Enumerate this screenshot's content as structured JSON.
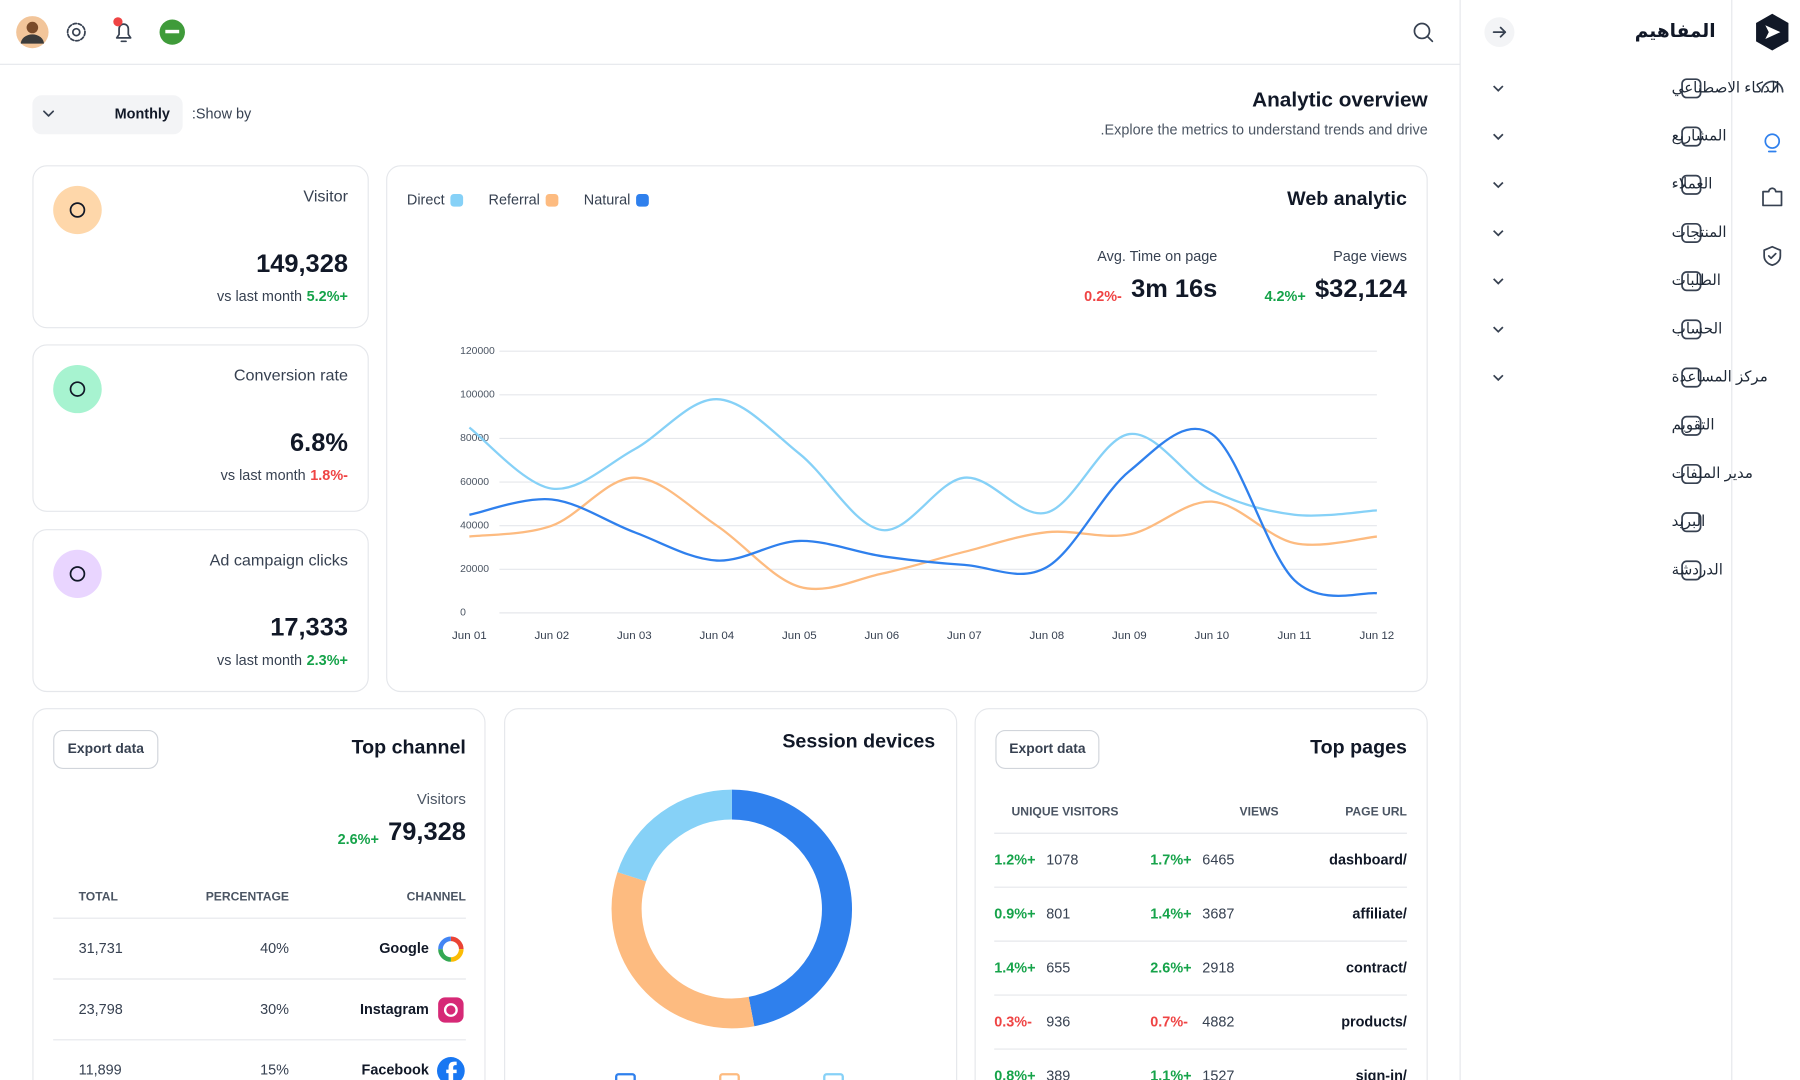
{
  "sidebar": {
    "brand": "المفاهيم",
    "menu": [
      "الذكاء الاصطناعي",
      "المشاريع",
      "العملاء",
      "المنتجات",
      "الطلبات",
      "الحساب",
      "مركز المساعدة",
      "التقويم",
      "مدير الملفات",
      "البريد",
      "الدردشة"
    ]
  },
  "header": {
    "title": "Analytic overview",
    "subtitle": ".Explore the metrics to understand trends and drive",
    "show_by_label": ":Show by",
    "show_by_value": "Monthly"
  },
  "stats": [
    {
      "label": "Visitor",
      "value": "149,328",
      "compare": "vs last month",
      "change": "5.2%+"
    },
    {
      "label": "Conversion rate",
      "value": "6.8%",
      "compare": "vs last month",
      "change": "1.8%-"
    },
    {
      "label": "Ad campaign clicks",
      "value": "17,333",
      "compare": "vs last month",
      "change": "2.3%+"
    }
  ],
  "web_analytic": {
    "title": "Web analytic",
    "metrics": [
      {
        "label": "Page views",
        "value": "$32,124",
        "change": "4.2%+"
      },
      {
        "label": "Avg. Time on page",
        "value": "3m 16s",
        "change": "0.2%-"
      }
    ]
  },
  "top_channel": {
    "title": "Top channel",
    "export": "Export data",
    "visitors_label": "Visitors",
    "visitors_value": "79,328",
    "visitors_change": "2.6%+",
    "columns": [
      "TOTAL",
      "PERCENTAGE",
      "CHANNEL"
    ],
    "rows": [
      [
        "31,731",
        "40%",
        "Google"
      ],
      [
        "23,798",
        "30%",
        "Instagram"
      ],
      [
        "11,899",
        "15%",
        "Facebook"
      ]
    ]
  },
  "session_devices": {
    "title": "Session devices"
  },
  "top_pages": {
    "title": "Top pages",
    "export": "Export data",
    "columns": [
      "UNIQUE VISITORS",
      "VIEWS",
      "PAGE URL"
    ],
    "rows": [
      [
        "1.2%+",
        "1078",
        "1.7%+",
        "6465",
        "dashboard/"
      ],
      [
        "0.9%+",
        "801",
        "1.4%+",
        "3687",
        "affiliate/"
      ],
      [
        "1.4%+",
        "655",
        "2.6%+",
        "2918",
        "contract/"
      ],
      [
        "0.3%-",
        "936",
        "0.7%-",
        "4882",
        "products/"
      ],
      [
        "0.8%+",
        "389",
        "1.1%+",
        "1527",
        "sign-in/"
      ]
    ]
  },
  "chart_data": [
    {
      "type": "line",
      "smooth": true,
      "grid": true,
      "legend": "top-left",
      "categories": [
        "Jun 01",
        "Jun 02",
        "Jun 03",
        "Jun 04",
        "Jun 05",
        "Jun 06",
        "Jun 07",
        "Jun 08",
        "Jun 09",
        "Jun 10",
        "Jun 11",
        "Jun 12"
      ],
      "ylim": [
        0,
        120000
      ],
      "yticks": [
        0,
        20000,
        40000,
        60000,
        80000,
        100000,
        120000
      ],
      "series": [
        {
          "name": "Direct",
          "color": "#86d1f7",
          "values": [
            85000,
            57000,
            75000,
            98000,
            73000,
            38000,
            62000,
            46000,
            82000,
            56000,
            45000,
            47000
          ]
        },
        {
          "name": "Referral",
          "color": "#fdbb80",
          "values": [
            35000,
            40000,
            62000,
            40000,
            12000,
            18000,
            28000,
            37000,
            36000,
            51000,
            32000,
            35000
          ]
        },
        {
          "name": "Natural",
          "color": "#2f80ed",
          "values": [
            45000,
            52000,
            37000,
            24000,
            33000,
            26000,
            22000,
            21000,
            65000,
            82000,
            15000,
            9000
          ]
        }
      ]
    },
    {
      "type": "donut",
      "categories": [
        null,
        null,
        null
      ],
      "values": [
        47,
        33,
        20
      ],
      "colors": [
        "#2f80ed",
        "#fdbb80",
        "#86d1f7"
      ]
    }
  ]
}
